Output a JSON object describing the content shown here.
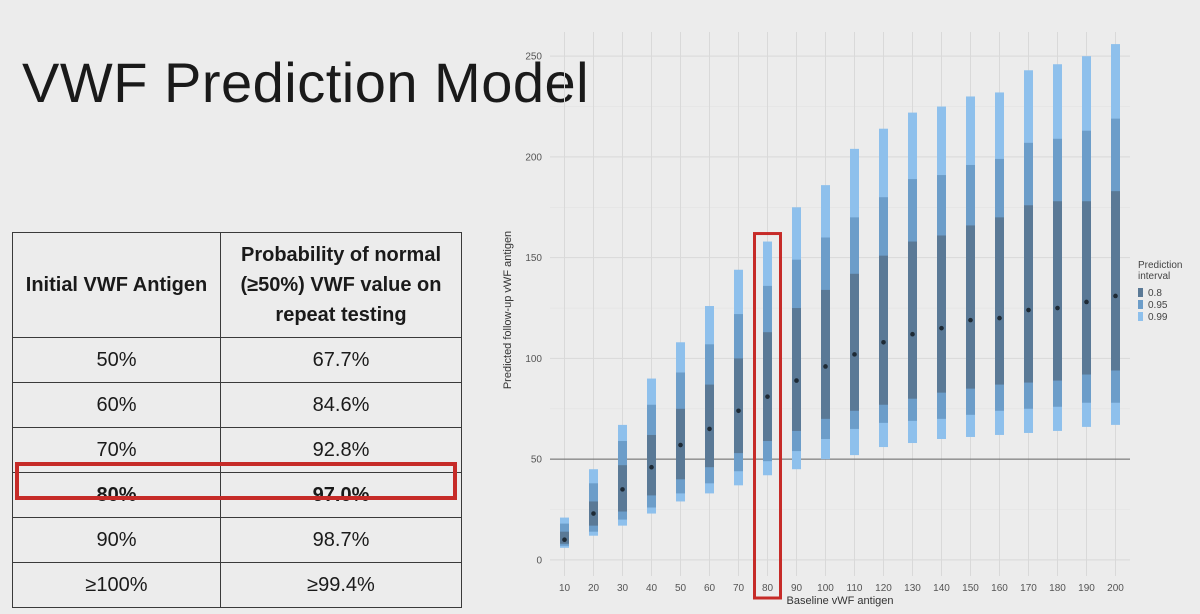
{
  "slide": {
    "title": "VWF Prediction Model"
  },
  "table": {
    "headers": [
      "Initial VWF Antigen",
      "Probability of normal (≥50%) VWF value on repeat testing"
    ],
    "rows": [
      [
        "50%",
        "67.7%"
      ],
      [
        "60%",
        "84.6%"
      ],
      [
        "70%",
        "92.8%"
      ],
      [
        "80%",
        "97.0%"
      ],
      [
        "90%",
        "98.7%"
      ],
      [
        "≥100%",
        "≥99.4%"
      ]
    ],
    "highlight_row_label": "80%"
  },
  "chart_data": {
    "type": "interval",
    "xlabel": "Baseline vWF antigen",
    "ylabel": "Predicted follow-up vWF antigen",
    "x": [
      10,
      20,
      30,
      40,
      50,
      60,
      70,
      80,
      90,
      100,
      110,
      120,
      130,
      140,
      150,
      160,
      170,
      180,
      190,
      200
    ],
    "xlim": [
      5,
      205
    ],
    "ylim": [
      -8,
      262
    ],
    "yticks": [
      0,
      50,
      100,
      150,
      200,
      250
    ],
    "reference_line_y": 50,
    "highlight_x": 80,
    "median": [
      10,
      23,
      35,
      46,
      57,
      65,
      74,
      81,
      89,
      96,
      102,
      108,
      112,
      115,
      119,
      120,
      124,
      125,
      128,
      131
    ],
    "interval_0.99": [
      [
        6,
        21
      ],
      [
        12,
        45
      ],
      [
        17,
        67
      ],
      [
        23,
        90
      ],
      [
        29,
        108
      ],
      [
        33,
        126
      ],
      [
        37,
        144
      ],
      [
        42,
        158
      ],
      [
        45,
        175
      ],
      [
        50,
        186
      ],
      [
        52,
        204
      ],
      [
        56,
        214
      ],
      [
        58,
        222
      ],
      [
        60,
        225
      ],
      [
        61,
        230
      ],
      [
        62,
        232
      ],
      [
        63,
        243
      ],
      [
        64,
        246
      ],
      [
        66,
        250
      ],
      [
        67,
        256
      ]
    ],
    "interval_0.95": [
      [
        7,
        18
      ],
      [
        14,
        38
      ],
      [
        20,
        59
      ],
      [
        26,
        77
      ],
      [
        33,
        93
      ],
      [
        38,
        107
      ],
      [
        44,
        122
      ],
      [
        49,
        136
      ],
      [
        54,
        149
      ],
      [
        60,
        160
      ],
      [
        65,
        170
      ],
      [
        68,
        180
      ],
      [
        69,
        189
      ],
      [
        70,
        191
      ],
      [
        72,
        196
      ],
      [
        74,
        199
      ],
      [
        75,
        207
      ],
      [
        76,
        209
      ],
      [
        78,
        213
      ],
      [
        78,
        219
      ]
    ],
    "interval_0.8": [
      [
        8,
        14
      ],
      [
        17,
        29
      ],
      [
        24,
        47
      ],
      [
        32,
        62
      ],
      [
        40,
        75
      ],
      [
        46,
        87
      ],
      [
        53,
        100
      ],
      [
        59,
        113
      ],
      [
        64,
        125
      ],
      [
        70,
        134
      ],
      [
        74,
        142
      ],
      [
        77,
        151
      ],
      [
        80,
        158
      ],
      [
        83,
        161
      ],
      [
        85,
        166
      ],
      [
        87,
        170
      ],
      [
        88,
        176
      ],
      [
        89,
        178
      ],
      [
        92,
        178
      ],
      [
        94,
        183
      ]
    ],
    "legend": {
      "title": "Prediction interval",
      "entries": [
        "0.8",
        "0.95",
        "0.99"
      ],
      "colors": [
        "#5a7996",
        "#6c9dc9",
        "#8ec0ec"
      ],
      "position": "right"
    },
    "highlight_color": "#c62b28",
    "grid": true
  }
}
